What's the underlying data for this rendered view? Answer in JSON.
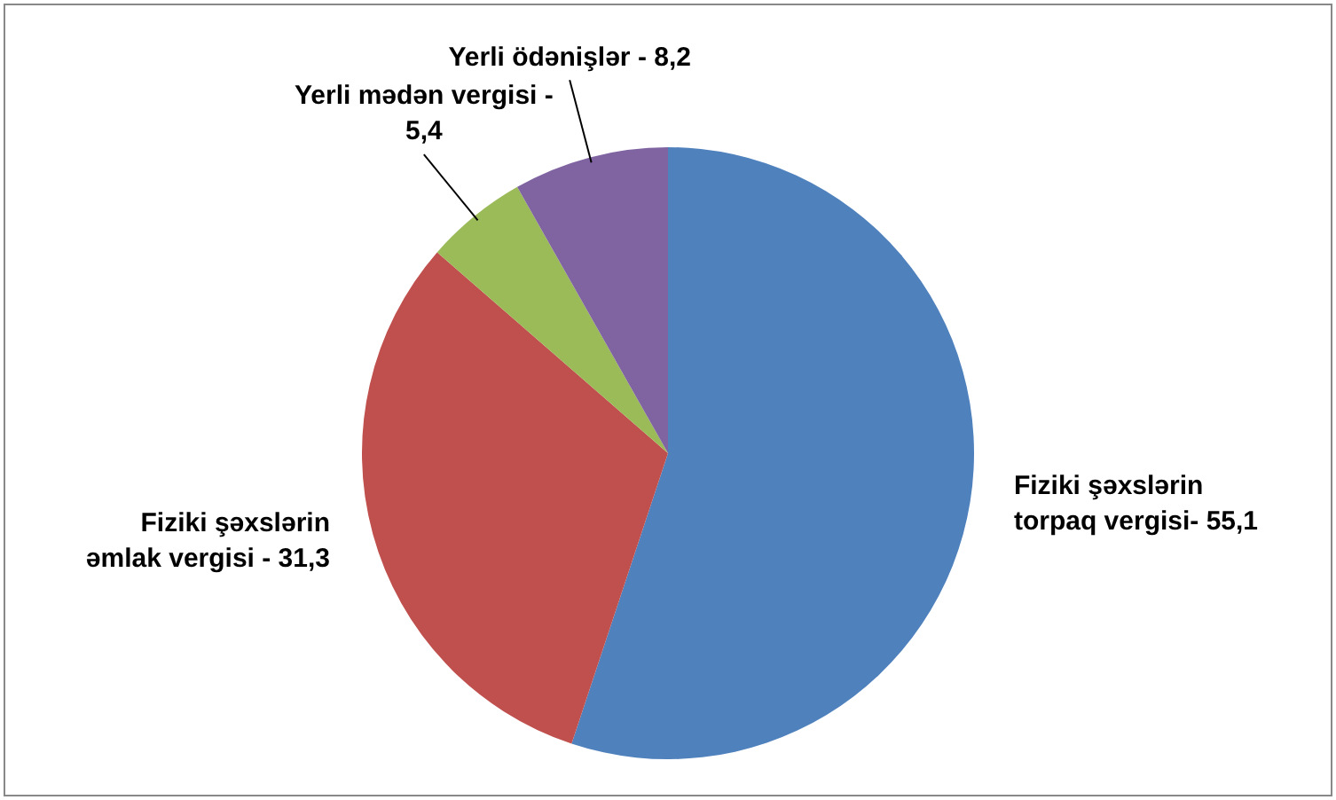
{
  "chart_data": {
    "type": "pie",
    "categories": [
      "Fiziki şəxslərin torpaq vergisi- 55,1",
      "Fiziki şəxslərin əmlak vergisi - 31,3",
      "Yerli mədən vergisi - 5,4",
      "Yerli ödənişlər - 8,2"
    ],
    "values": [
      55.1,
      31.3,
      5.4,
      8.2
    ],
    "colors": [
      "#4f81bd",
      "#c0504d",
      "#9bbb59",
      "#8064a2"
    ],
    "legend": false
  }
}
